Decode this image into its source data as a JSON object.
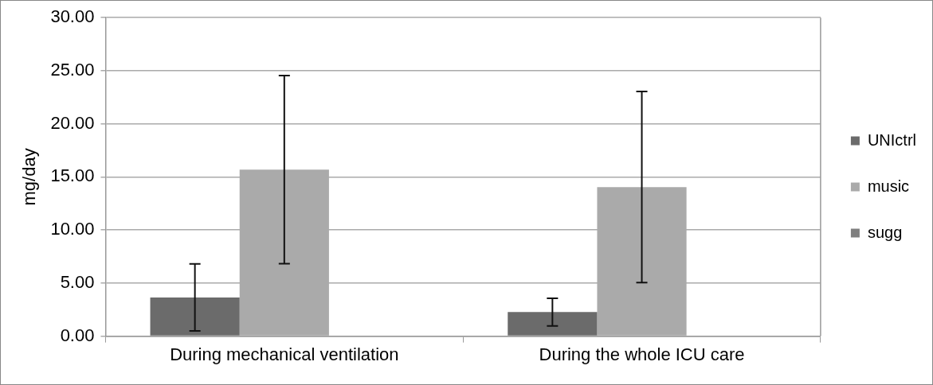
{
  "chart_data": {
    "type": "bar",
    "ylabel": "mg/day",
    "categories": [
      "During mechanical ventilation",
      "During the whole ICU care"
    ],
    "series": [
      {
        "name": "UNIctrl",
        "color": "#6b6b6b",
        "values": [
          3.65,
          2.27
        ],
        "errors": [
          3.16,
          1.3
        ]
      },
      {
        "name": "music",
        "color": "#aaaaaa",
        "values": [
          15.68,
          14.04
        ],
        "errors": [
          8.86,
          9.0
        ]
      },
      {
        "name": "sugg",
        "color": "#7f7f7f",
        "values": [
          null,
          null
        ]
      }
    ],
    "ylim": [
      0,
      30
    ],
    "yticks": [
      {
        "value": 0,
        "label": "0.00"
      },
      {
        "value": 5,
        "label": "5.00"
      },
      {
        "value": 10,
        "label": "10.00"
      },
      {
        "value": 15,
        "label": "15.00"
      },
      {
        "value": 20,
        "label": "20.00"
      },
      {
        "value": 25,
        "label": "25.00"
      },
      {
        "value": 30,
        "label": "30.00"
      }
    ],
    "grid": "y",
    "legend": "right"
  }
}
